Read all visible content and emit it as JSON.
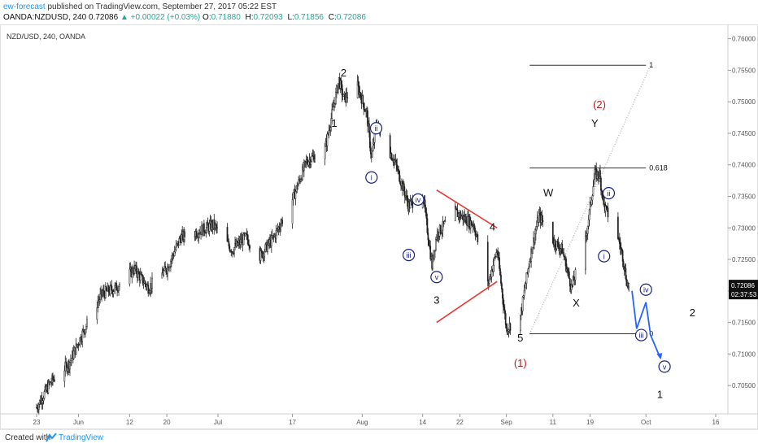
{
  "header": {
    "author": "ew-forecast",
    "published": "published on TradingView.com, September 27, 2017 05:22 EST",
    "symbol": "OANDA:NZDUSD, 240",
    "last": "0.72086",
    "change": "▲ +0.00022 (+0.03%)",
    "o_label": "O:",
    "o": "0.71880",
    "h_label": "H:",
    "h": "0.72093",
    "l_label": "L:",
    "l": "0.71856",
    "c_label": "C:",
    "c": "0.72086"
  },
  "footer": {
    "created": "Created with",
    "brand": "TradingView"
  },
  "colors": {
    "candles": "#222222",
    "price_badge": "#111111",
    "red_label": "#b71c1c",
    "red_line": "#e53935",
    "circle_label": "#1a237e",
    "projection": "#2962ff",
    "axis_text": "#555555"
  },
  "chart_data": {
    "type": "candlestick",
    "title": "NZD/USD, 240, OANDA",
    "ylim": [
      0.7005,
      0.7615
    ],
    "y_ticks": [
      0.705,
      0.71,
      0.715,
      0.72,
      0.725,
      0.73,
      0.735,
      0.74,
      0.745,
      0.75,
      0.755,
      0.76
    ],
    "y_tick_labels": [
      "0.70500",
      "0.71000",
      "0.71500",
      "0.72000",
      "0.72500",
      "0.73000",
      "0.73500",
      "0.74000",
      "0.74500",
      "0.75000",
      "0.75500",
      "0.76000"
    ],
    "x_ticks": [
      "23",
      "Jun",
      "12",
      "20",
      "Jul",
      "17",
      "Aug",
      "14",
      "22",
      "Sep",
      "11",
      "19",
      "Oct",
      "16"
    ],
    "current_price": "0.72086",
    "countdown": "02:37:53",
    "price_path": {
      "dates": [
        "2017-05-23",
        "2017-05-26",
        "2017-05-30",
        "2017-06-02",
        "2017-06-06",
        "2017-06-09",
        "2017-06-13",
        "2017-06-16",
        "2017-06-20",
        "2017-06-23",
        "2017-06-27",
        "2017-06-30",
        "2017-07-04",
        "2017-07-07",
        "2017-07-10",
        "2017-07-13",
        "2017-07-17",
        "2017-07-20",
        "2017-07-24",
        "2017-07-27",
        "2017-07-28",
        "2017-07-31",
        "2017-08-02",
        "2017-08-03",
        "2017-08-04",
        "2017-08-08",
        "2017-08-11",
        "2017-08-14",
        "2017-08-16",
        "2017-08-17",
        "2017-08-21",
        "2017-08-25",
        "2017-08-28",
        "2017-08-30",
        "2017-09-01",
        "2017-09-04",
        "2017-09-06",
        "2017-09-08",
        "2017-09-11",
        "2017-09-13",
        "2017-09-15",
        "2017-09-18",
        "2017-09-20",
        "2017-09-21",
        "2017-09-22",
        "2017-09-25",
        "2017-09-26",
        "2017-09-27"
      ],
      "close": [
        0.7015,
        0.7055,
        0.7085,
        0.7135,
        0.7195,
        0.7205,
        0.7235,
        0.7205,
        0.7235,
        0.7285,
        0.7295,
        0.7305,
        0.7265,
        0.7285,
        0.7255,
        0.7285,
        0.7345,
        0.7405,
        0.7425,
        0.7535,
        0.7505,
        0.7525,
        0.748,
        0.741,
        0.7465,
        0.7405,
        0.7335,
        0.7355,
        0.724,
        0.729,
        0.7325,
        0.7305,
        0.721,
        0.7265,
        0.714,
        0.716,
        0.725,
        0.732,
        0.728,
        0.7265,
        0.7205,
        0.728,
        0.7385,
        0.7385,
        0.7335,
        0.7285,
        0.7255,
        0.7209
      ]
    },
    "annotations": {
      "black": [
        {
          "text": "1",
          "date": "2017-07-26",
          "price": 0.746
        },
        {
          "text": "2",
          "date": "2017-07-28",
          "price": 0.754
        },
        {
          "text": "3",
          "date": "2017-08-17",
          "price": 0.718
        },
        {
          "text": "4",
          "date": "2017-08-29",
          "price": 0.7296
        },
        {
          "text": "5",
          "date": "2017-09-04",
          "price": 0.712
        },
        {
          "text": "W",
          "date": "2017-09-10",
          "price": 0.735
        },
        {
          "text": "X",
          "date": "2017-09-16",
          "price": 0.7175
        },
        {
          "text": "Y",
          "date": "2017-09-20",
          "price": 0.746
        },
        {
          "text": "1",
          "date": "2017-10-04",
          "price": 0.703
        },
        {
          "text": "2",
          "date": "2017-10-11",
          "price": 0.716
        }
      ],
      "red": [
        {
          "text": "(1)",
          "date": "2017-09-04",
          "price": 0.708
        },
        {
          "text": "(2)",
          "date": "2017-09-21",
          "price": 0.749
        }
      ],
      "circled": [
        {
          "text": "i",
          "date": "2017-08-03",
          "price": 0.738
        },
        {
          "text": "ii",
          "date": "2017-08-04",
          "price": 0.7458
        },
        {
          "text": "iii",
          "date": "2017-08-11",
          "price": 0.7257
        },
        {
          "text": "iv",
          "date": "2017-08-13",
          "price": 0.7345
        },
        {
          "text": "v",
          "date": "2017-08-17",
          "price": 0.7222
        },
        {
          "text": "i",
          "date": "2017-09-22",
          "price": 0.7255
        },
        {
          "text": "ii",
          "date": "2017-09-23",
          "price": 0.7355
        },
        {
          "text": "iii",
          "date": "2017-09-30",
          "price": 0.713
        },
        {
          "text": "iv",
          "date": "2017-10-01",
          "price": 0.7202
        },
        {
          "text": "v",
          "date": "2017-10-05",
          "price": 0.708
        }
      ]
    },
    "triangle_lines": [
      {
        "from": {
          "date": "2017-08-17",
          "price": 0.736
        },
        "to": {
          "date": "2017-08-30",
          "price": 0.73
        }
      },
      {
        "from": {
          "date": "2017-08-17",
          "price": 0.715
        },
        "to": {
          "date": "2017-08-30",
          "price": 0.7215
        }
      }
    ],
    "fibonacci": {
      "anchor_from": {
        "date": "2017-09-06",
        "price": 0.7132
      },
      "anchor_to": {
        "date": "2017-10-02",
        "price": 0.7558
      },
      "line_end_date": "2017-10-01",
      "levels": [
        {
          "label": "1",
          "price": 0.7558
        },
        {
          "label": "0.618",
          "price": 0.7395
        },
        {
          "label": "0",
          "price": 0.7132
        }
      ]
    },
    "projection": {
      "dates": [
        "2017-09-28",
        "2017-09-29",
        "2017-10-01",
        "2017-10-02",
        "2017-10-04"
      ],
      "prices": [
        0.72,
        0.714,
        0.7182,
        0.713,
        0.7095
      ]
    }
  }
}
